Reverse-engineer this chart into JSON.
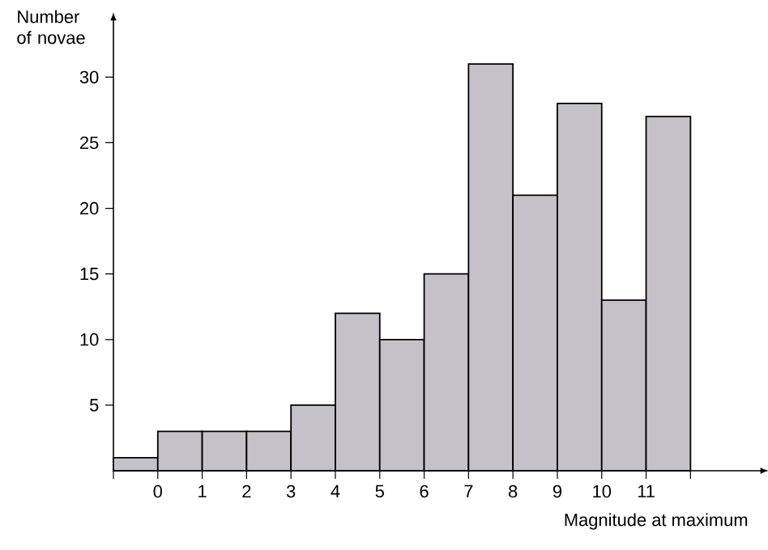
{
  "chart_data": {
    "type": "histogram",
    "xlabel": "Magnitude at maximum",
    "ylabel": "Number of novae",
    "bins": [
      -1,
      0,
      1,
      2,
      3,
      4,
      5,
      6,
      7,
      8,
      9,
      10,
      11,
      12
    ],
    "values": [
      1,
      3,
      3,
      3,
      5,
      12,
      10,
      15,
      31,
      21,
      28,
      13,
      27
    ],
    "color": "#c4c2c8",
    "xlim": [
      -1,
      13.6
    ],
    "ylim": [
      0,
      34.4
    ],
    "xticks": [
      {
        "value": -1,
        "label": null
      },
      0,
      1,
      2,
      3,
      4,
      5,
      6,
      7,
      8,
      9,
      10,
      11,
      {
        "value": 12,
        "label": null
      }
    ],
    "yticks": [
      5,
      10,
      15,
      20,
      25,
      30
    ],
    "grid": false
  }
}
